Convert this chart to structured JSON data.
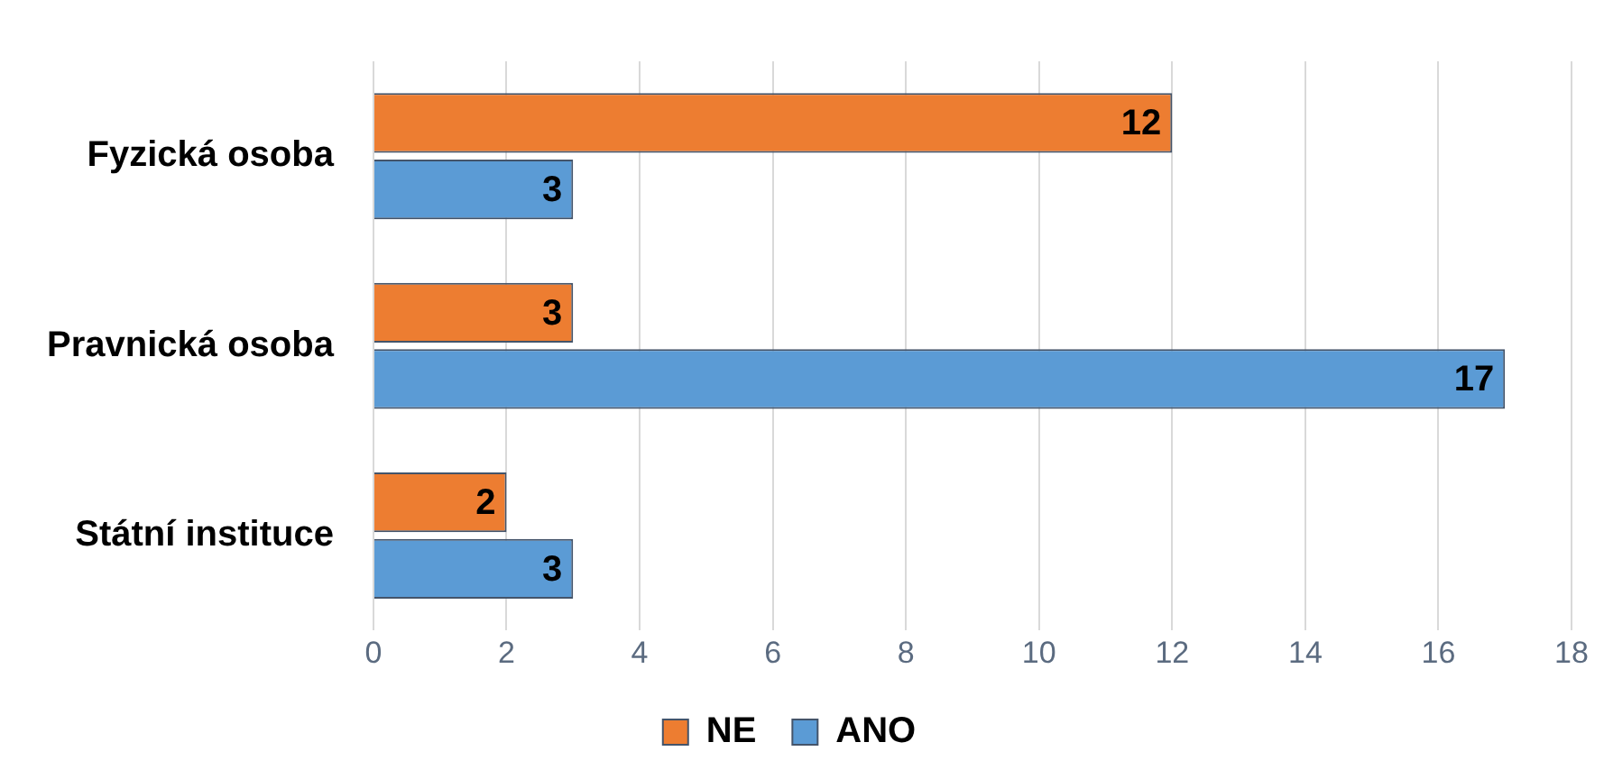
{
  "chart_data": {
    "type": "bar",
    "orientation": "horizontal",
    "categories": [
      "Fyzická osoba",
      "Pravnická osoba",
      "Státní instituce"
    ],
    "series": [
      {
        "name": "NE",
        "color": "#ed7d31",
        "values": [
          12,
          3,
          2
        ]
      },
      {
        "name": "ANO",
        "color": "#5b9bd5",
        "values": [
          3,
          17,
          3
        ]
      }
    ],
    "xlim": [
      0,
      18
    ],
    "xticks": [
      0,
      2,
      4,
      6,
      8,
      10,
      12,
      14,
      16,
      18
    ],
    "grid": "x",
    "legend": "bottom",
    "data_labels": true
  }
}
